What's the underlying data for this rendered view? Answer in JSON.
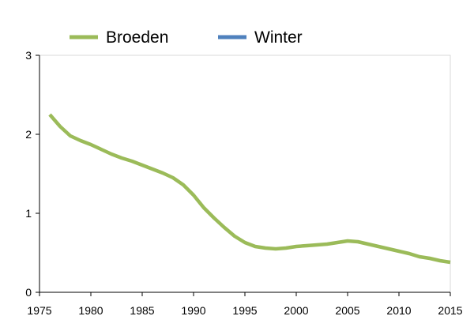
{
  "chart_data": {
    "type": "line",
    "xlim": [
      1975,
      2015
    ],
    "ylim": [
      0,
      3
    ],
    "x_ticks": [
      1975,
      1980,
      1985,
      1990,
      1995,
      2000,
      2005,
      2010,
      2015
    ],
    "y_ticks": [
      0,
      1,
      2,
      3
    ],
    "grid": false,
    "legend_position": "top",
    "series": [
      {
        "name": "Broeden",
        "color": "#9bbb59",
        "x": [
          1976,
          1977,
          1978,
          1979,
          1980,
          1981,
          1982,
          1983,
          1984,
          1985,
          1986,
          1987,
          1988,
          1989,
          1990,
          1991,
          1992,
          1993,
          1994,
          1995,
          1996,
          1997,
          1998,
          1999,
          2000,
          2001,
          2002,
          2003,
          2004,
          2005,
          2006,
          2007,
          2008,
          2009,
          2010,
          2011,
          2012,
          2013,
          2014,
          2015
        ],
        "values": [
          2.25,
          2.1,
          1.98,
          1.92,
          1.87,
          1.81,
          1.75,
          1.7,
          1.66,
          1.61,
          1.56,
          1.51,
          1.45,
          1.36,
          1.23,
          1.07,
          0.94,
          0.82,
          0.71,
          0.63,
          0.58,
          0.56,
          0.55,
          0.56,
          0.58,
          0.59,
          0.6,
          0.61,
          0.63,
          0.65,
          0.64,
          0.61,
          0.58,
          0.55,
          0.52,
          0.49,
          0.45,
          0.43,
          0.4,
          0.38
        ]
      },
      {
        "name": "Winter",
        "color": "#4f81bd",
        "x": [],
        "values": []
      }
    ]
  }
}
